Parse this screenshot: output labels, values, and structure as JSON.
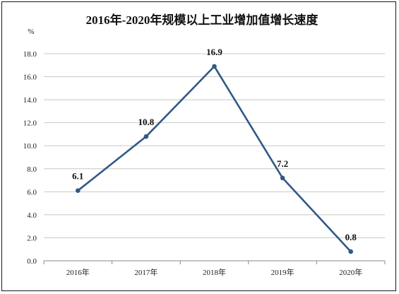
{
  "chart_data": {
    "type": "line",
    "title": "2016年-2020年规模以上工业增加值增长速度",
    "y_unit": "%",
    "xlabel": "",
    "ylabel": "",
    "categories": [
      "2016年",
      "2017年",
      "2018年",
      "2019年",
      "2020年"
    ],
    "series": [
      {
        "values": [
          6.1,
          10.8,
          16.9,
          7.2,
          0.8
        ]
      }
    ],
    "data_labels": [
      "6.1",
      "10.8",
      "16.9",
      "7.2",
      "0.8"
    ],
    "y_ticks": [
      "0.0",
      "2.0",
      "4.0",
      "6.0",
      "8.0",
      "10.0",
      "12.0",
      "14.0",
      "16.0",
      "18.0"
    ],
    "ylim": [
      0,
      18
    ],
    "grid": true,
    "legend": "none",
    "colors": {
      "line": "#2f5a86",
      "marker": "#2f5a86",
      "grid": "#c8c8c8",
      "axis": "#888888"
    }
  }
}
